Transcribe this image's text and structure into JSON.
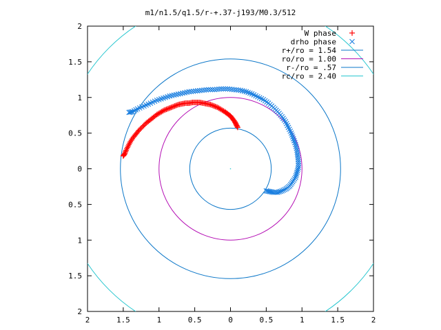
{
  "chart_data": {
    "type": "scatter",
    "title": "m1/n1.5/q1.5/r-+.37-j193/M0.3/512",
    "xlabel": "",
    "ylabel": "",
    "xlim": [
      -2,
      2
    ],
    "ylim": [
      -2,
      2
    ],
    "x_tick_values": [
      -2,
      -1.5,
      -1,
      -0.5,
      0,
      0.5,
      1,
      1.5,
      2
    ],
    "x_tick_labels": [
      "2",
      "1.5",
      "1",
      "0.5",
      "0",
      "0.5",
      "1",
      "1.5",
      "2"
    ],
    "y_tick_values": [
      2,
      1.5,
      1,
      0.5,
      0,
      -0.5,
      -1,
      -1.5,
      -2
    ],
    "y_tick_labels": [
      "2",
      "1.5",
      "1",
      "0.5",
      "0",
      "0.5",
      "1",
      "1.5",
      "2"
    ],
    "grid": false,
    "legend_position": "top-right",
    "circles": [
      {
        "name": "r+/ro = 1.54",
        "radius": 1.54,
        "color": "#0a76c8"
      },
      {
        "name": "ro/ro = 1.00",
        "radius": 1.0,
        "color": "#b40eb4"
      },
      {
        "name": "r-/ro = .57",
        "radius": 0.57,
        "color": "#0a76c8"
      },
      {
        "name": "rc/ro = 2.40",
        "radius": 2.4,
        "color": "#26c6cf"
      }
    ],
    "series": [
      {
        "name": "W phase",
        "marker": "+",
        "color": "#ff0000",
        "points": [
          [
            0.1,
            0.58
          ],
          [
            0.08,
            0.62
          ],
          [
            0.06,
            0.66
          ],
          [
            0.03,
            0.7
          ],
          [
            0.0,
            0.74
          ],
          [
            -0.04,
            0.77
          ],
          [
            -0.08,
            0.8
          ],
          [
            -0.13,
            0.83
          ],
          [
            -0.18,
            0.86
          ],
          [
            -0.23,
            0.88
          ],
          [
            -0.28,
            0.9
          ],
          [
            -0.33,
            0.91
          ],
          [
            -0.38,
            0.92
          ],
          [
            -0.43,
            0.93
          ],
          [
            -0.48,
            0.93
          ],
          [
            -0.53,
            0.93
          ],
          [
            -0.58,
            0.92
          ],
          [
            -0.63,
            0.92
          ],
          [
            -0.68,
            0.91
          ],
          [
            -0.73,
            0.9
          ],
          [
            -0.78,
            0.88
          ],
          [
            -0.83,
            0.86
          ],
          [
            -0.88,
            0.84
          ],
          [
            -0.93,
            0.82
          ],
          [
            -0.98,
            0.79
          ],
          [
            -1.03,
            0.76
          ],
          [
            -1.08,
            0.72
          ],
          [
            -1.13,
            0.68
          ],
          [
            -1.18,
            0.64
          ],
          [
            -1.23,
            0.59
          ],
          [
            -1.28,
            0.54
          ],
          [
            -1.32,
            0.49
          ],
          [
            -1.36,
            0.44
          ],
          [
            -1.4,
            0.38
          ],
          [
            -1.43,
            0.32
          ],
          [
            -1.46,
            0.26
          ],
          [
            -1.48,
            0.21
          ],
          [
            -1.5,
            0.18
          ]
        ]
      },
      {
        "name": "drho phase",
        "marker": "x",
        "color": "#1a7fe0",
        "points": [
          [
            0.5,
            -0.31
          ],
          [
            0.55,
            -0.32
          ],
          [
            0.6,
            -0.33
          ],
          [
            0.66,
            -0.33
          ],
          [
            0.72,
            -0.31
          ],
          [
            0.78,
            -0.28
          ],
          [
            0.83,
            -0.24
          ],
          [
            0.87,
            -0.18
          ],
          [
            0.91,
            -0.12
          ],
          [
            0.93,
            -0.05
          ],
          [
            0.95,
            0.02
          ],
          [
            0.95,
            0.1
          ],
          [
            0.94,
            0.18
          ],
          [
            0.93,
            0.26
          ],
          [
            0.91,
            0.34
          ],
          [
            0.88,
            0.42
          ],
          [
            0.85,
            0.5
          ],
          [
            0.81,
            0.58
          ],
          [
            0.77,
            0.66
          ],
          [
            0.72,
            0.73
          ],
          [
            0.66,
            0.8
          ],
          [
            0.6,
            0.86
          ],
          [
            0.53,
            0.92
          ],
          [
            0.46,
            0.97
          ],
          [
            0.38,
            1.01
          ],
          [
            0.3,
            1.05
          ],
          [
            0.22,
            1.08
          ],
          [
            0.14,
            1.1
          ],
          [
            0.05,
            1.11
          ],
          [
            -0.04,
            1.12
          ],
          [
            -0.13,
            1.12
          ],
          [
            -0.22,
            1.11
          ],
          [
            -0.31,
            1.11
          ],
          [
            -0.4,
            1.1
          ],
          [
            -0.49,
            1.09
          ],
          [
            -0.58,
            1.08
          ],
          [
            -0.67,
            1.06
          ],
          [
            -0.76,
            1.04
          ],
          [
            -0.85,
            1.02
          ],
          [
            -0.94,
            0.99
          ],
          [
            -1.03,
            0.96
          ],
          [
            -1.12,
            0.92
          ],
          [
            -1.21,
            0.88
          ],
          [
            -1.3,
            0.84
          ],
          [
            -1.37,
            0.8
          ],
          [
            -1.42,
            0.79
          ]
        ]
      }
    ]
  }
}
